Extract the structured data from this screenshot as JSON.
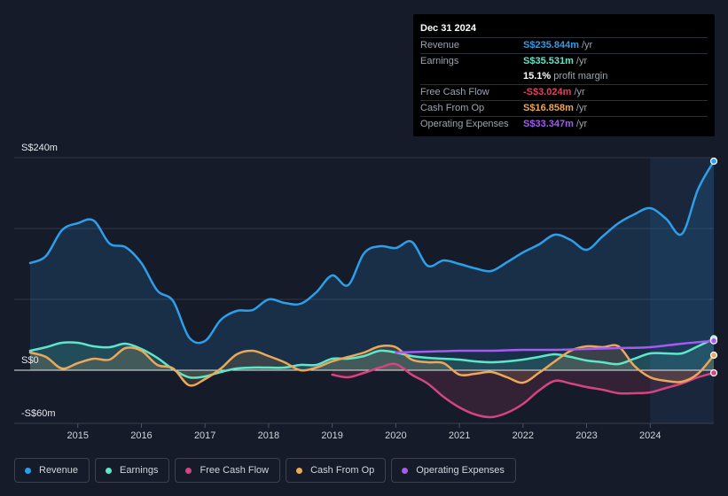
{
  "tooltip": {
    "date": "Dec 31 2024",
    "rows": [
      {
        "label": "Revenue",
        "value": "S$235.844m",
        "unit": "/yr",
        "color": "#2d9ee8"
      },
      {
        "label": "Earnings",
        "value": "S$35.531m",
        "unit": "/yr",
        "color": "#5fe6c9"
      },
      {
        "label": "",
        "value": "15.1%",
        "unit": "profit margin",
        "color": "#ffffff"
      },
      {
        "label": "Free Cash Flow",
        "value": "-S$3.024m",
        "unit": "/yr",
        "color": "#e0425c"
      },
      {
        "label": "Cash From Op",
        "value": "S$16.858m",
        "unit": "/yr",
        "color": "#e9a85a"
      },
      {
        "label": "Operating Expenses",
        "value": "S$33.347m",
        "unit": "/yr",
        "color": "#a35bf0"
      }
    ]
  },
  "legend": [
    {
      "label": "Revenue",
      "color": "#2d9ee8"
    },
    {
      "label": "Earnings",
      "color": "#5fe6c9"
    },
    {
      "label": "Free Cash Flow",
      "color": "#d4447f"
    },
    {
      "label": "Cash From Op",
      "color": "#e9a85a"
    },
    {
      "label": "Operating Expenses",
      "color": "#a35bf0"
    }
  ],
  "chart_data": {
    "type": "line",
    "y_labels": {
      "top": "S$240m",
      "zero": "S$0",
      "bottom": "-S$60m"
    },
    "ylim": [
      -60,
      240
    ],
    "xlim": [
      2014.0,
      2025.0
    ],
    "x_ticks": [
      "2015",
      "2016",
      "2017",
      "2018",
      "2019",
      "2020",
      "2021",
      "2022",
      "2023",
      "2024"
    ],
    "grid": true,
    "highlight_from": 2024.0,
    "series": [
      {
        "name": "Revenue",
        "color": "#2d9ee8",
        "fill": true,
        "points": [
          [
            2014.25,
            121
          ],
          [
            2014.5,
            129
          ],
          [
            2014.75,
            158
          ],
          [
            2015.0,
            166
          ],
          [
            2015.25,
            169
          ],
          [
            2015.5,
            143
          ],
          [
            2015.75,
            139
          ],
          [
            2016.0,
            121
          ],
          [
            2016.25,
            90
          ],
          [
            2016.5,
            78
          ],
          [
            2016.75,
            37
          ],
          [
            2017.0,
            33
          ],
          [
            2017.25,
            57
          ],
          [
            2017.5,
            67
          ],
          [
            2017.75,
            68
          ],
          [
            2018.0,
            80
          ],
          [
            2018.25,
            76
          ],
          [
            2018.5,
            75
          ],
          [
            2018.75,
            88
          ],
          [
            2019.0,
            107
          ],
          [
            2019.25,
            96
          ],
          [
            2019.5,
            132
          ],
          [
            2019.75,
            140
          ],
          [
            2020.0,
            138
          ],
          [
            2020.25,
            145
          ],
          [
            2020.5,
            118
          ],
          [
            2020.75,
            124
          ],
          [
            2021.0,
            120
          ],
          [
            2021.25,
            115
          ],
          [
            2021.5,
            112
          ],
          [
            2021.75,
            122
          ],
          [
            2022.0,
            133
          ],
          [
            2022.25,
            142
          ],
          [
            2022.5,
            153
          ],
          [
            2022.75,
            147
          ],
          [
            2023.0,
            136
          ],
          [
            2023.25,
            151
          ],
          [
            2023.5,
            166
          ],
          [
            2023.75,
            176
          ],
          [
            2024.0,
            183
          ],
          [
            2024.25,
            171
          ],
          [
            2024.5,
            154
          ],
          [
            2024.75,
            204
          ],
          [
            2025.0,
            236
          ]
        ]
      },
      {
        "name": "Earnings",
        "color": "#5fe6c9",
        "fill": true,
        "points": [
          [
            2014.25,
            22
          ],
          [
            2014.5,
            26
          ],
          [
            2014.75,
            31
          ],
          [
            2015.0,
            31
          ],
          [
            2015.25,
            27
          ],
          [
            2015.5,
            26
          ],
          [
            2015.75,
            30
          ],
          [
            2016.0,
            24
          ],
          [
            2016.25,
            14
          ],
          [
            2016.5,
            1
          ],
          [
            2016.75,
            -8
          ],
          [
            2017.0,
            -7
          ],
          [
            2017.25,
            -2
          ],
          [
            2017.5,
            2
          ],
          [
            2017.75,
            3
          ],
          [
            2018.0,
            3
          ],
          [
            2018.25,
            3
          ],
          [
            2018.5,
            6
          ],
          [
            2018.75,
            6
          ],
          [
            2019.0,
            13
          ],
          [
            2019.25,
            13
          ],
          [
            2019.5,
            16
          ],
          [
            2019.75,
            22
          ],
          [
            2020.0,
            20
          ],
          [
            2020.25,
            16
          ],
          [
            2020.5,
            14
          ],
          [
            2020.75,
            13
          ],
          [
            2021.0,
            12
          ],
          [
            2021.25,
            10
          ],
          [
            2021.5,
            9
          ],
          [
            2021.75,
            10
          ],
          [
            2022.0,
            12
          ],
          [
            2022.25,
            15
          ],
          [
            2022.5,
            18
          ],
          [
            2022.75,
            15
          ],
          [
            2023.0,
            11
          ],
          [
            2023.25,
            9
          ],
          [
            2023.5,
            7
          ],
          [
            2023.75,
            13
          ],
          [
            2024.0,
            19
          ],
          [
            2024.25,
            19
          ],
          [
            2024.5,
            19
          ],
          [
            2024.75,
            27
          ],
          [
            2025.0,
            35.5
          ]
        ]
      },
      {
        "name": "Free Cash Flow",
        "color": "#d4447f",
        "fill": true,
        "points": [
          [
            2019.0,
            -5
          ],
          [
            2019.25,
            -8
          ],
          [
            2019.5,
            -3
          ],
          [
            2019.75,
            3
          ],
          [
            2020.0,
            7
          ],
          [
            2020.25,
            -5
          ],
          [
            2020.5,
            -15
          ],
          [
            2020.75,
            -30
          ],
          [
            2021.0,
            -42
          ],
          [
            2021.25,
            -50
          ],
          [
            2021.5,
            -53
          ],
          [
            2021.75,
            -48
          ],
          [
            2022.0,
            -38
          ],
          [
            2022.25,
            -23
          ],
          [
            2022.5,
            -12
          ],
          [
            2022.75,
            -15
          ],
          [
            2023.0,
            -19
          ],
          [
            2023.25,
            -22
          ],
          [
            2023.5,
            -26
          ],
          [
            2023.75,
            -26
          ],
          [
            2024.0,
            -25
          ],
          [
            2024.25,
            -20
          ],
          [
            2024.5,
            -15
          ],
          [
            2024.75,
            -8
          ],
          [
            2025.0,
            -3
          ]
        ]
      },
      {
        "name": "Cash From Op",
        "color": "#e9a85a",
        "fill": true,
        "points": [
          [
            2014.25,
            20
          ],
          [
            2014.5,
            15
          ],
          [
            2014.75,
            2
          ],
          [
            2015.0,
            8
          ],
          [
            2015.25,
            13
          ],
          [
            2015.5,
            12
          ],
          [
            2015.75,
            25
          ],
          [
            2016.0,
            22
          ],
          [
            2016.25,
            6
          ],
          [
            2016.5,
            2
          ],
          [
            2016.75,
            -17
          ],
          [
            2017.0,
            -10
          ],
          [
            2017.25,
            2
          ],
          [
            2017.5,
            18
          ],
          [
            2017.75,
            22
          ],
          [
            2018.0,
            16
          ],
          [
            2018.25,
            9
          ],
          [
            2018.5,
            0
          ],
          [
            2018.75,
            3
          ],
          [
            2019.0,
            10
          ],
          [
            2019.25,
            15
          ],
          [
            2019.5,
            20
          ],
          [
            2019.75,
            27
          ],
          [
            2020.0,
            26
          ],
          [
            2020.25,
            12
          ],
          [
            2020.5,
            9
          ],
          [
            2020.75,
            8
          ],
          [
            2021.0,
            -5
          ],
          [
            2021.25,
            -4
          ],
          [
            2021.5,
            -2
          ],
          [
            2021.75,
            -8
          ],
          [
            2022.0,
            -14
          ],
          [
            2022.25,
            -3
          ],
          [
            2022.5,
            10
          ],
          [
            2022.75,
            22
          ],
          [
            2023.0,
            27
          ],
          [
            2023.25,
            26
          ],
          [
            2023.5,
            27
          ],
          [
            2023.75,
            5
          ],
          [
            2024.0,
            -8
          ],
          [
            2024.25,
            -12
          ],
          [
            2024.5,
            -13
          ],
          [
            2024.75,
            -4
          ],
          [
            2025.0,
            17
          ]
        ]
      },
      {
        "name": "Operating Expenses",
        "color": "#a35bf0",
        "fill": false,
        "points": [
          [
            2020.0,
            20
          ],
          [
            2020.5,
            21
          ],
          [
            2021.0,
            22
          ],
          [
            2021.5,
            22
          ],
          [
            2022.0,
            23
          ],
          [
            2022.5,
            23
          ],
          [
            2023.0,
            24
          ],
          [
            2023.5,
            25
          ],
          [
            2024.0,
            26
          ],
          [
            2024.5,
            30
          ],
          [
            2025.0,
            33.3
          ]
        ]
      }
    ]
  }
}
